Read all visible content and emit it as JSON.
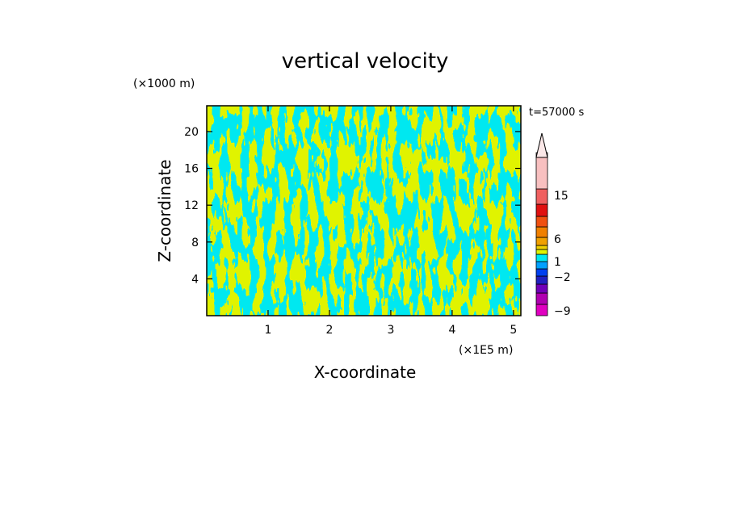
{
  "chart_data": {
    "type": "heatmap",
    "title": "vertical velocity",
    "xlabel": "X-coordinate",
    "ylabel": "Z-coordinate",
    "x_unit": "(×1E5 m)",
    "y_unit": "(×1000 m)",
    "time_label": "t=57000 s",
    "xlim": [
      0,
      5.12
    ],
    "ylim": [
      0,
      22.8
    ],
    "x_ticks": [
      1,
      2,
      3,
      4,
      5
    ],
    "y_ticks": [
      4,
      8,
      12,
      16,
      20
    ],
    "grid": false,
    "legend": "colorbar-right",
    "field_classes": [
      {
        "range": "<0",
        "color": "#00e8f0"
      },
      {
        "range": ">0",
        "color": "#e0f300"
      }
    ],
    "colorbar": {
      "labels": [
        "15",
        "6",
        "1",
        "-2",
        "-9"
      ],
      "levels": [
        "-12",
        "-9",
        "-6",
        "-4",
        "-2",
        "-1",
        "0",
        "1",
        "2",
        "4",
        "6",
        "9",
        "12",
        "15",
        "20"
      ],
      "colors": [
        "#e000c0",
        "#b000b0",
        "#7000b8",
        "#2020c0",
        "#0040f0",
        "#00a0ff",
        "#00e8f0",
        "#e0f300",
        "#f0d000",
        "#f0a000",
        "#f08000",
        "#f05010",
        "#e01010",
        "#f06060",
        "#f8c0c0"
      ]
    }
  }
}
